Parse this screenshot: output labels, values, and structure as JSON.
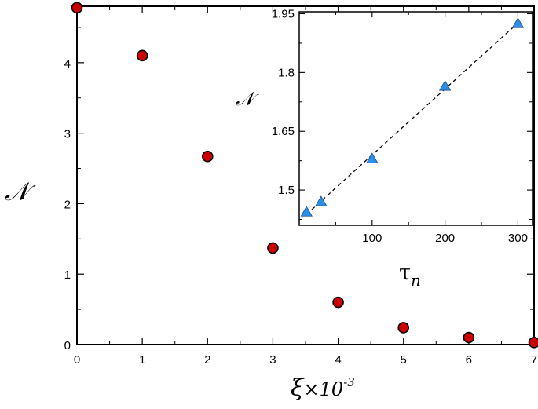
{
  "chart_data": [
    {
      "type": "scatter",
      "xlabel": "ξ",
      "xlabel_suffix": "×10",
      "xlabel_exponent": "-3",
      "ylabel": "𝒩",
      "xlim": [
        0,
        7
      ],
      "ylim": [
        0,
        4.8
      ],
      "x_ticks": [
        "0",
        "1",
        "2",
        "3",
        "4",
        "5",
        "6",
        "7"
      ],
      "y_ticks": [
        "0",
        "1",
        "2",
        "3",
        "4"
      ],
      "grid": false,
      "marker": "circle",
      "color": "#cc0000",
      "series": [
        {
          "x": [
            0,
            1,
            2,
            3,
            4,
            5,
            6,
            7
          ],
          "y": [
            4.78,
            4.1,
            2.67,
            1.37,
            0.6,
            0.24,
            0.1,
            0.03
          ]
        }
      ]
    },
    {
      "type": "scatter",
      "xlabel": "τ",
      "xlabel_subscript": "n",
      "ylabel": "𝒩",
      "xlim": [
        0,
        320
      ],
      "ylim": [
        1.41,
        1.955
      ],
      "x_ticks": [
        "100",
        "200",
        "300"
      ],
      "y_ticks": [
        "1.5",
        "1.65",
        "1.8",
        "1.95"
      ],
      "grid": false,
      "marker": "triangle",
      "color": "#2b8fe8",
      "fit_line": "dashed",
      "series": [
        {
          "x": [
            10,
            30,
            100,
            200,
            300
          ],
          "y": [
            1.444,
            1.47,
            1.58,
            1.765,
            1.925
          ]
        }
      ]
    }
  ]
}
